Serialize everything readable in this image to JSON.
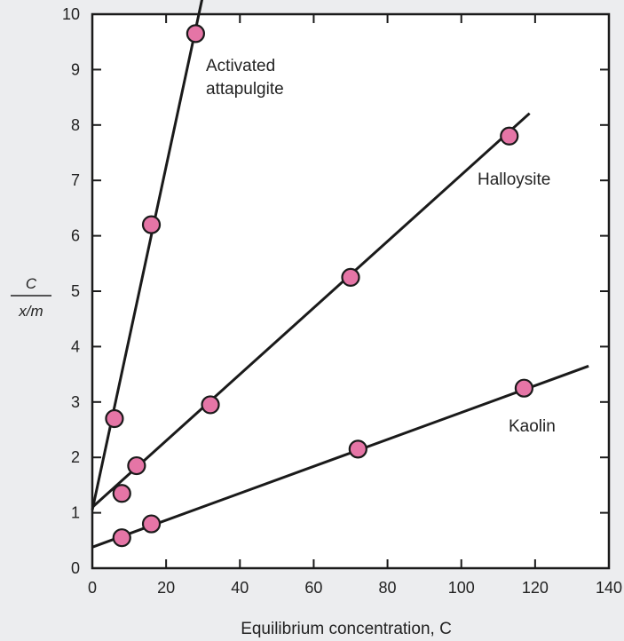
{
  "chart_data": {
    "type": "scatter",
    "xlabel": "Equilibrium concentration, C",
    "ylabel_numerator": "C",
    "ylabel_denominator": "x/m",
    "xlim": [
      0,
      140
    ],
    "ylim": [
      0,
      10
    ],
    "x_ticks": [
      0,
      20,
      40,
      60,
      80,
      100,
      120,
      140
    ],
    "y_ticks": [
      0,
      1,
      2,
      3,
      4,
      5,
      6,
      7,
      8,
      9,
      10
    ],
    "grid": false,
    "legend": "none",
    "marker_color": "#e575a6",
    "series": [
      {
        "label_lines": [
          "Activated",
          "attapulgite"
        ],
        "points": [
          [
            6,
            2.7
          ],
          [
            16,
            6.2
          ],
          [
            28,
            9.65
          ]
        ],
        "fit_line": {
          "intercept": 1.05,
          "slope": 0.31,
          "x_range": [
            0,
            30.5
          ]
        }
      },
      {
        "label_lines": [
          "Halloysite"
        ],
        "points": [
          [
            8,
            1.35
          ],
          [
            12,
            1.85
          ],
          [
            32,
            2.95
          ],
          [
            70,
            5.25
          ],
          [
            113,
            7.8
          ]
        ],
        "fit_line": {
          "intercept": 1.1,
          "slope": 0.06,
          "x_range": [
            0,
            118.5
          ]
        }
      },
      {
        "label_lines": [
          "Kaolin"
        ],
        "points": [
          [
            8,
            0.55
          ],
          [
            16,
            0.8
          ],
          [
            72,
            2.15
          ],
          [
            117,
            3.25
          ]
        ],
        "fit_line": {
          "intercept": 0.38,
          "slope": 0.0243,
          "x_range": [
            0,
            134.5
          ]
        }
      }
    ]
  }
}
